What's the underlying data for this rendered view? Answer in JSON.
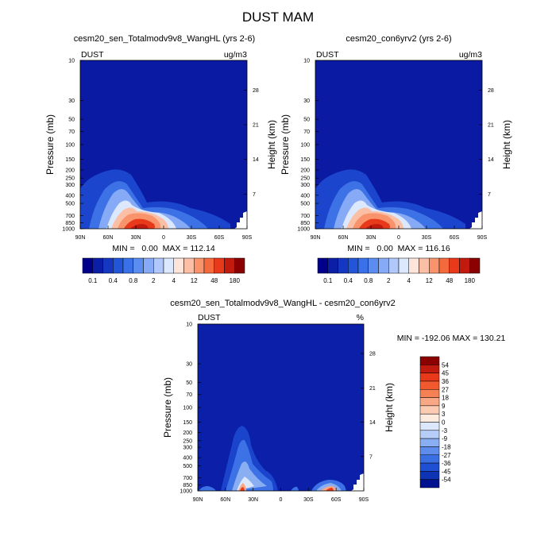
{
  "main_title": "DUST MAM",
  "chart_data": [
    {
      "type": "heatmap",
      "title": "cesm20_sen_Totalmodv9v8_WangHL (yrs 2-6)",
      "corner_left": "DUST",
      "corner_right": "ug/m3",
      "ylabel": "Pressure (mb)",
      "y2label": "Height (km)",
      "pressure_ticks": [
        "10",
        "30",
        "50",
        "70",
        "100",
        "150",
        "200",
        "250",
        "300",
        "400",
        "500",
        "700",
        "850",
        "1000"
      ],
      "height_ticks": [
        "28",
        "21",
        "14",
        "7"
      ],
      "x_ticks": [
        "90N",
        "60N",
        "30N",
        "0",
        "30S",
        "60S",
        "90S"
      ],
      "stats": "MIN =   0.00  MAX = 112.14",
      "xlim": [
        90,
        -90
      ],
      "ylim_mb": [
        1000,
        10
      ],
      "log_pressure": true
    },
    {
      "type": "heatmap",
      "title": "cesm20_con6yrv2 (yrs 2-6)",
      "corner_left": "DUST",
      "corner_right": "ug/m3",
      "ylabel": "Pressure (mb)",
      "y2label": "Height (km)",
      "pressure_ticks": [
        "10",
        "30",
        "50",
        "70",
        "100",
        "150",
        "200",
        "250",
        "300",
        "400",
        "500",
        "700",
        "850",
        "1000"
      ],
      "height_ticks": [
        "28",
        "21",
        "14",
        "7"
      ],
      "x_ticks": [
        "90N",
        "60N",
        "30N",
        "0",
        "30S",
        "60S",
        "90S"
      ],
      "stats": "MIN =   0.00  MAX = 116.16",
      "xlim": [
        90,
        -90
      ],
      "ylim_mb": [
        1000,
        10
      ],
      "log_pressure": true
    },
    {
      "type": "heatmap",
      "title": "cesm20_sen_Totalmodv9v8_WangHL - cesm20_con6yrv2",
      "corner_left": "DUST",
      "corner_right": "%",
      "ylabel": "Pressure (mb)",
      "y2label": "Height (km)",
      "pressure_ticks": [
        "10",
        "30",
        "50",
        "70",
        "100",
        "150",
        "200",
        "250",
        "300",
        "400",
        "500",
        "700",
        "850",
        "1000"
      ],
      "height_ticks": [
        "28",
        "21",
        "14",
        "7"
      ],
      "x_ticks": [
        "90N",
        "60N",
        "30N",
        "0",
        "30S",
        "60S",
        "90S"
      ],
      "stats": "MIN = -192.06  MAX = 130.21",
      "xlim": [
        90,
        -90
      ],
      "ylim_mb": [
        1000,
        10
      ],
      "log_pressure": true
    }
  ],
  "colorbar_top": {
    "orientation": "horizontal",
    "labels": [
      "0.1",
      "0.4",
      "0.8",
      "2",
      "4",
      "12",
      "48",
      "180"
    ],
    "colors": [
      "#00008b",
      "#0a1fa6",
      "#1538c2",
      "#2255d8",
      "#3a70e8",
      "#5b8cf0",
      "#86aaf5",
      "#b0c8fa",
      "#dce8fd",
      "#fde5dc",
      "#fbbfa5",
      "#f8936b",
      "#f56a3d",
      "#e8391a",
      "#c21a0f",
      "#8b0000"
    ]
  },
  "colorbar_diff": {
    "orientation": "vertical",
    "labels": [
      "54",
      "45",
      "36",
      "27",
      "18",
      "9",
      "3",
      "0",
      "-3",
      "-9",
      "-18",
      "-27",
      "-36",
      "-45",
      "-54"
    ],
    "colors": [
      "#8b0000",
      "#c11a0e",
      "#e8391a",
      "#f2592e",
      "#f58155",
      "#f9a886",
      "#fbcbb2",
      "#fdebdd",
      "#dbe7fb",
      "#b6cdf7",
      "#8aaef2",
      "#5d8cec",
      "#3a6fe4",
      "#1f4fd2",
      "#0f33b5",
      "#00118f"
    ]
  },
  "colors": {
    "field_background": "#0a1aa3",
    "diff_background": "#0b1fa8"
  }
}
